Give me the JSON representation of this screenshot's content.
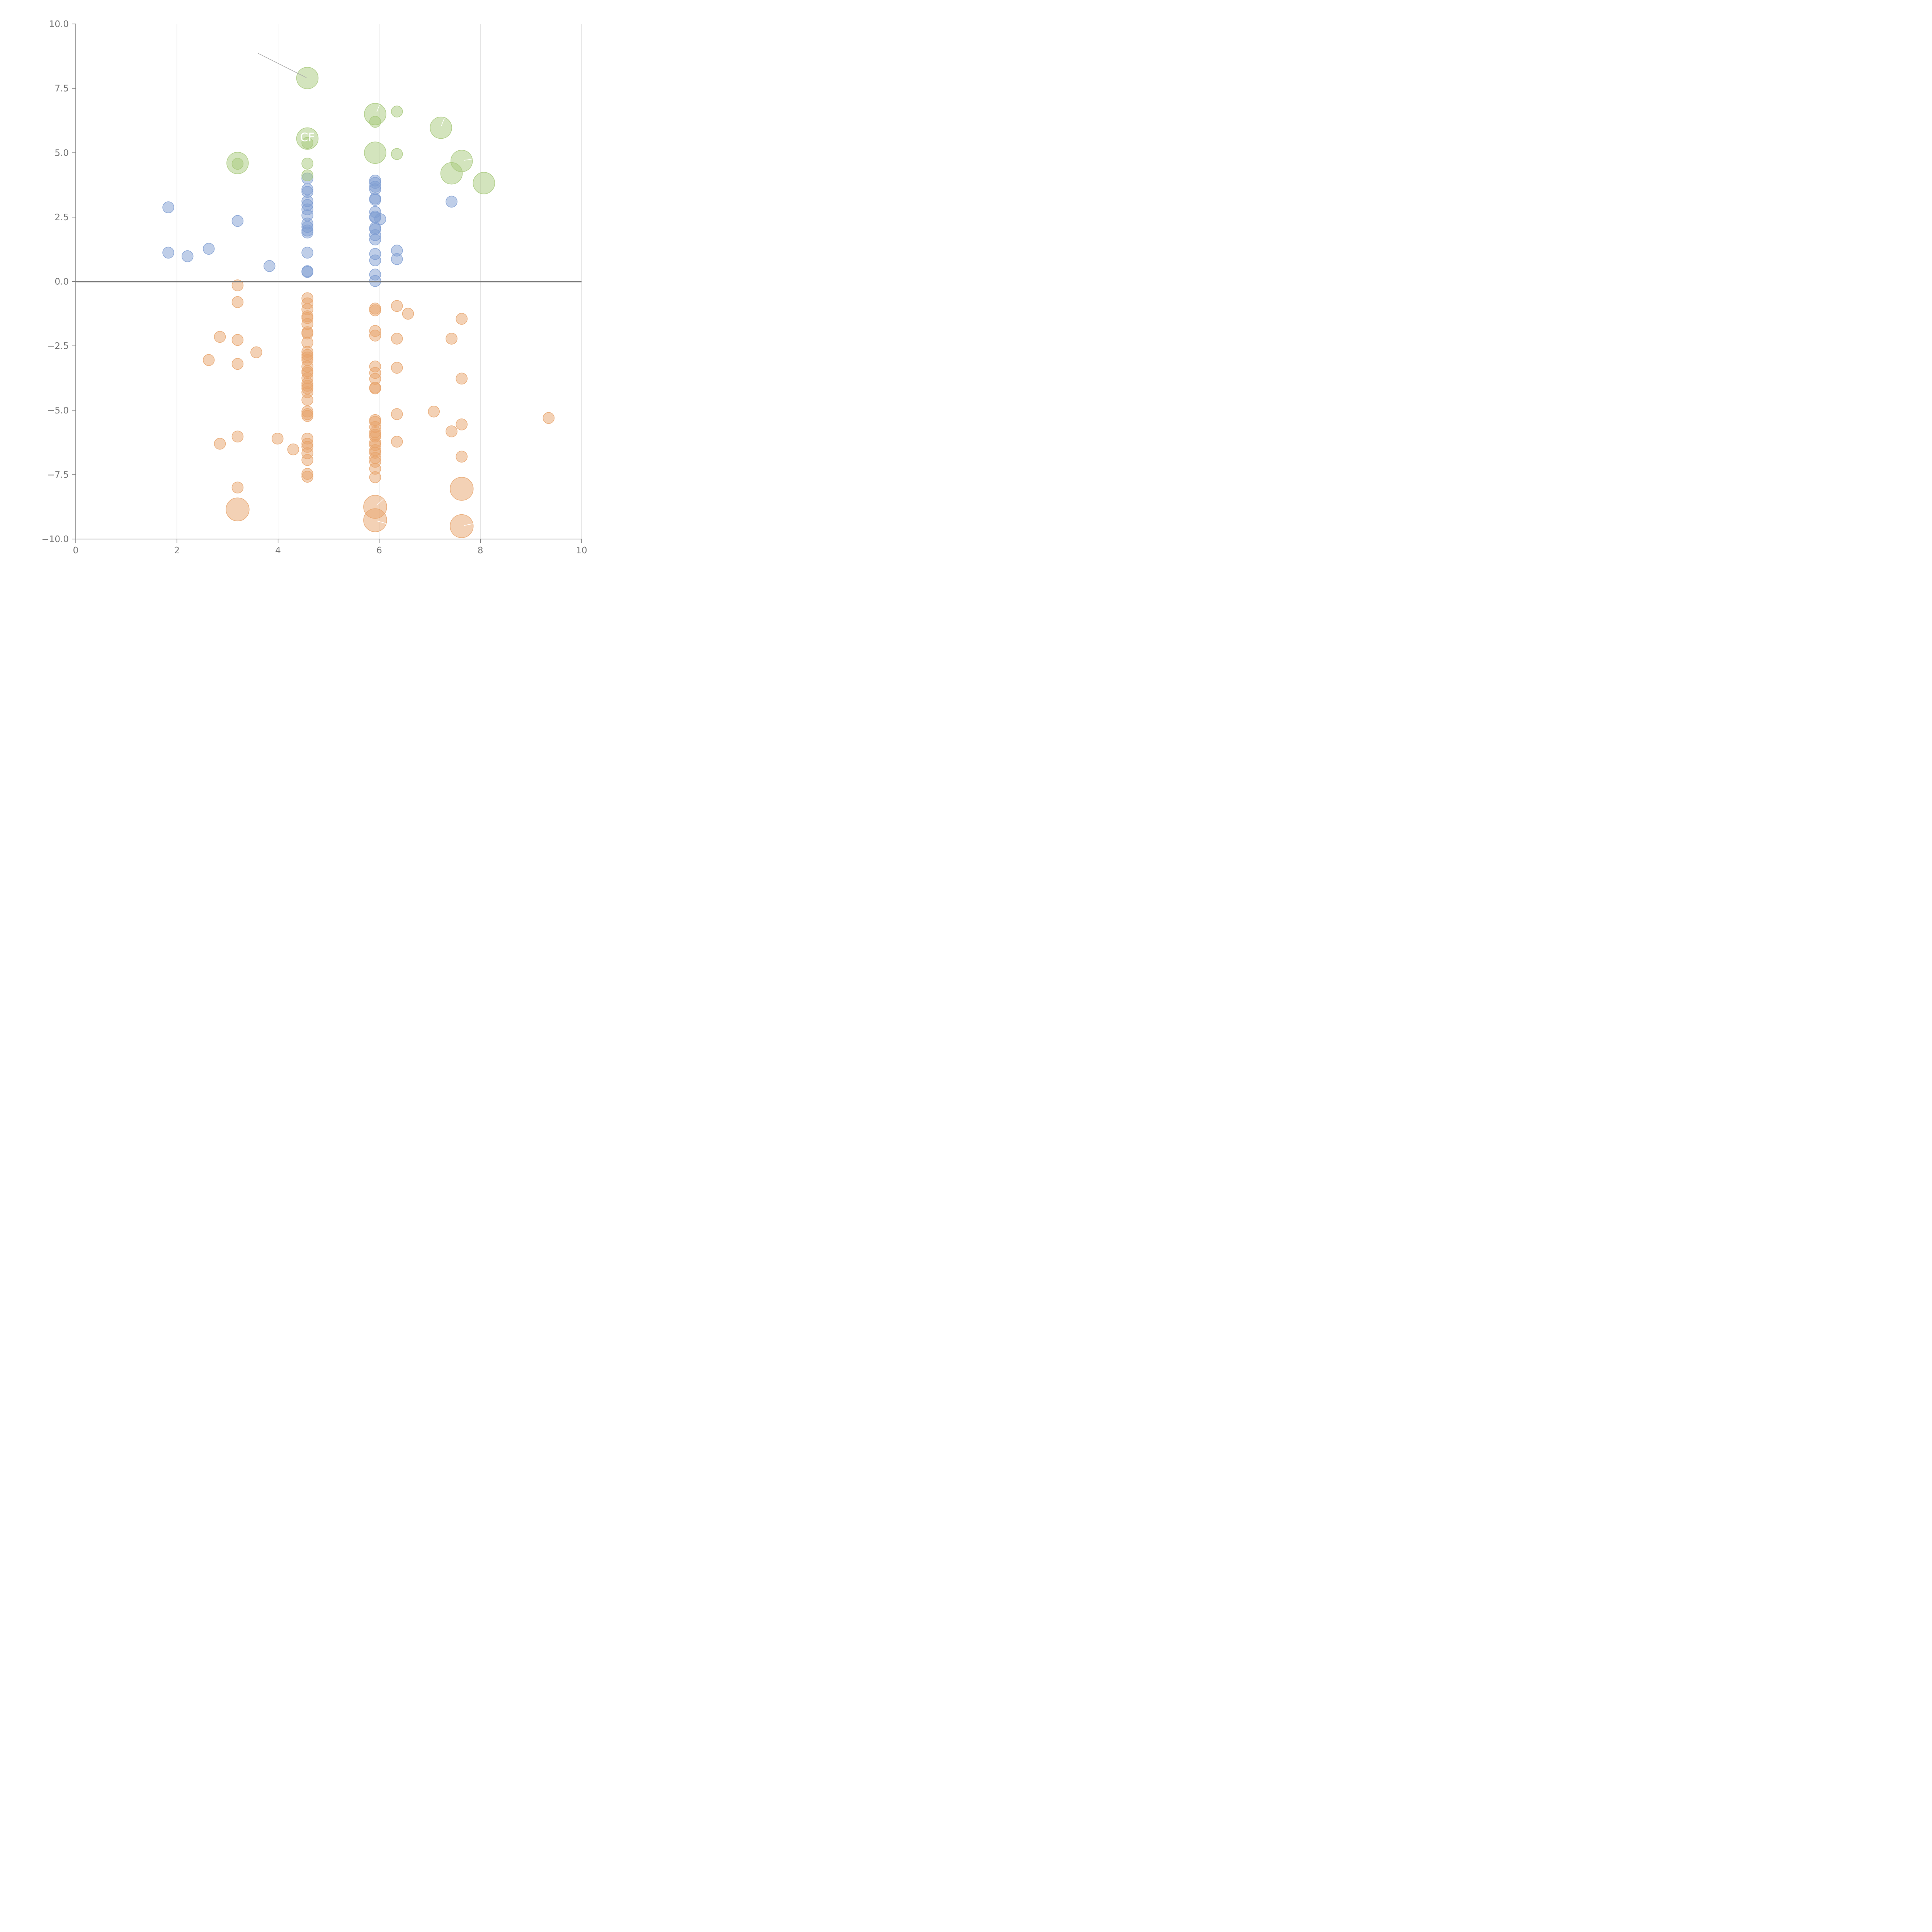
{
  "chart_data": {
    "type": "scatter",
    "title": "",
    "xlabel": "",
    "ylabel": "",
    "xlim": [
      0,
      10
    ],
    "ylim": [
      -10,
      10
    ],
    "x_ticks": [
      "0",
      "2",
      "4",
      "6",
      "8",
      "10"
    ],
    "y_ticks": [
      "10.0",
      "7.5",
      "5.0",
      "2.5",
      "0.0",
      "−2.5",
      "−5.0",
      "−7.5",
      "−10.0"
    ],
    "x_tick_values": [
      0,
      2,
      4,
      6,
      8,
      10
    ],
    "y_tick_values": [
      10,
      7.5,
      5,
      2.5,
      0,
      -2.5,
      -5,
      -7.5,
      -10
    ],
    "grid": "vertical",
    "zero_line": true,
    "colors": {
      "orange": "#e8a46c",
      "blue": "#7f9ed2",
      "green": "#a8c97c"
    },
    "series": [
      {
        "name": "orange",
        "color": "#e8a46c",
        "points": [
          [
            3.2,
            -0.15,
            1
          ],
          [
            3.2,
            -0.8,
            1
          ],
          [
            2.85,
            -2.15,
            1
          ],
          [
            3.2,
            -2.27,
            1
          ],
          [
            3.57,
            -2.75,
            1
          ],
          [
            2.63,
            -3.05,
            1
          ],
          [
            3.2,
            -3.2,
            1
          ],
          [
            2.85,
            -6.3,
            1
          ],
          [
            3.2,
            -6.02,
            1
          ],
          [
            3.99,
            -6.1,
            1
          ],
          [
            4.3,
            -6.52,
            1
          ],
          [
            3.2,
            -8.0,
            1
          ],
          [
            3.2,
            -8.85,
            3
          ],
          [
            4.58,
            -0.65,
            1
          ],
          [
            4.58,
            -0.85,
            1
          ],
          [
            4.58,
            -1.08,
            1
          ],
          [
            4.58,
            -1.35,
            1
          ],
          [
            4.58,
            -1.42,
            1
          ],
          [
            4.58,
            -1.65,
            1
          ],
          [
            4.58,
            -1.97,
            1
          ],
          [
            4.58,
            -2.02,
            1
          ],
          [
            4.58,
            -2.37,
            1
          ],
          [
            4.58,
            -2.73,
            1
          ],
          [
            4.58,
            -2.85,
            1
          ],
          [
            4.58,
            -2.95,
            1
          ],
          [
            4.58,
            -3.05,
            1
          ],
          [
            4.58,
            -3.3,
            1
          ],
          [
            4.58,
            -3.48,
            1
          ],
          [
            4.58,
            -3.55,
            1
          ],
          [
            4.58,
            -3.75,
            1
          ],
          [
            4.58,
            -3.95,
            1
          ],
          [
            4.58,
            -4.05,
            1
          ],
          [
            4.58,
            -4.15,
            1
          ],
          [
            4.58,
            -4.3,
            1
          ],
          [
            4.58,
            -4.6,
            1
          ],
          [
            4.58,
            -5.05,
            1
          ],
          [
            4.58,
            -5.15,
            1
          ],
          [
            4.58,
            -5.22,
            1
          ],
          [
            4.58,
            -6.1,
            1
          ],
          [
            4.58,
            -6.3,
            1
          ],
          [
            4.58,
            -6.42,
            1
          ],
          [
            4.58,
            -6.67,
            1
          ],
          [
            4.58,
            -6.93,
            1
          ],
          [
            4.58,
            -7.47,
            1
          ],
          [
            4.58,
            -7.58,
            1
          ],
          [
            5.92,
            -1.05,
            1
          ],
          [
            5.92,
            -1.12,
            1
          ],
          [
            5.92,
            -1.92,
            1
          ],
          [
            5.92,
            -2.1,
            1
          ],
          [
            5.92,
            -3.3,
            1
          ],
          [
            5.92,
            -3.55,
            1
          ],
          [
            5.92,
            -3.78,
            1
          ],
          [
            5.92,
            -4.12,
            1
          ],
          [
            5.92,
            -4.15,
            1
          ],
          [
            5.92,
            -5.38,
            1
          ],
          [
            5.92,
            -5.45,
            1
          ],
          [
            5.92,
            -5.65,
            1
          ],
          [
            5.92,
            -5.85,
            1
          ],
          [
            5.92,
            -5.95,
            1
          ],
          [
            5.92,
            -6.02,
            1
          ],
          [
            5.92,
            -6.25,
            1
          ],
          [
            5.92,
            -6.35,
            1
          ],
          [
            5.92,
            -6.55,
            1
          ],
          [
            5.92,
            -6.65,
            1
          ],
          [
            5.92,
            -6.85,
            1
          ],
          [
            5.92,
            -7.0,
            1
          ],
          [
            5.92,
            -7.27,
            1
          ],
          [
            5.92,
            -7.6,
            1
          ],
          [
            5.92,
            -8.75,
            3
          ],
          [
            5.92,
            -9.27,
            3
          ],
          [
            6.35,
            -0.95,
            1
          ],
          [
            6.57,
            -1.25,
            1
          ],
          [
            6.35,
            -2.22,
            1
          ],
          [
            6.35,
            -3.35,
            1
          ],
          [
            6.35,
            -5.15,
            1
          ],
          [
            6.35,
            -6.22,
            1
          ],
          [
            7.08,
            -5.05,
            1
          ],
          [
            7.43,
            -2.22,
            1
          ],
          [
            7.43,
            -5.82,
            1
          ],
          [
            7.63,
            -1.45,
            1
          ],
          [
            7.63,
            -3.77,
            1
          ],
          [
            7.63,
            -5.55,
            1
          ],
          [
            7.63,
            -6.8,
            1
          ],
          [
            7.63,
            -8.05,
            3
          ],
          [
            7.63,
            -9.5,
            3
          ],
          [
            9.35,
            -5.3,
            1
          ]
        ]
      },
      {
        "name": "blue",
        "color": "#7f9ed2",
        "points": [
          [
            1.83,
            2.88,
            1
          ],
          [
            1.83,
            1.12,
            1
          ],
          [
            2.21,
            0.98,
            1
          ],
          [
            2.63,
            1.27,
            1
          ],
          [
            3.2,
            2.35,
            1
          ],
          [
            3.83,
            0.6,
            1
          ],
          [
            4.58,
            4.0,
            1
          ],
          [
            4.58,
            3.58,
            1
          ],
          [
            4.58,
            3.48,
            1
          ],
          [
            4.58,
            3.12,
            1
          ],
          [
            4.58,
            2.97,
            1
          ],
          [
            4.58,
            2.8,
            1
          ],
          [
            4.58,
            2.57,
            1
          ],
          [
            4.58,
            2.25,
            1
          ],
          [
            4.58,
            2.12,
            1
          ],
          [
            4.58,
            1.98,
            1
          ],
          [
            4.58,
            1.9,
            1
          ],
          [
            4.58,
            1.12,
            1
          ],
          [
            4.58,
            0.4,
            1
          ],
          [
            4.58,
            0.37,
            1
          ],
          [
            5.92,
            3.92,
            1
          ],
          [
            5.92,
            3.83,
            1
          ],
          [
            5.92,
            3.68,
            1
          ],
          [
            5.92,
            3.58,
            1
          ],
          [
            5.92,
            3.22,
            1
          ],
          [
            5.92,
            3.17,
            1
          ],
          [
            5.92,
            2.7,
            1
          ],
          [
            5.92,
            2.52,
            1
          ],
          [
            5.92,
            2.48,
            1
          ],
          [
            6.02,
            2.42,
            1
          ],
          [
            5.92,
            2.08,
            1
          ],
          [
            5.92,
            2.03,
            1
          ],
          [
            5.92,
            1.8,
            1
          ],
          [
            5.92,
            1.63,
            1
          ],
          [
            5.92,
            1.07,
            1
          ],
          [
            5.92,
            0.82,
            1
          ],
          [
            5.92,
            0.27,
            1
          ],
          [
            5.92,
            0.02,
            1
          ],
          [
            6.35,
            1.2,
            1
          ],
          [
            6.35,
            0.87,
            1
          ],
          [
            7.43,
            3.1,
            1
          ]
        ]
      },
      {
        "name": "green",
        "color": "#a8c97c",
        "points": [
          [
            3.2,
            4.6,
            2
          ],
          [
            3.2,
            4.57,
            1
          ],
          [
            4.58,
            7.9,
            2
          ],
          [
            4.58,
            5.55,
            2
          ],
          [
            4.58,
            5.38,
            1
          ],
          [
            4.58,
            4.58,
            1
          ],
          [
            4.58,
            4.12,
            1
          ],
          [
            5.92,
            6.5,
            2
          ],
          [
            5.92,
            6.2,
            1
          ],
          [
            5.92,
            5.0,
            2
          ],
          [
            6.35,
            6.6,
            1
          ],
          [
            6.35,
            4.95,
            1
          ],
          [
            7.22,
            5.97,
            2
          ],
          [
            7.63,
            4.68,
            2
          ],
          [
            7.43,
            4.2,
            2
          ],
          [
            8.07,
            3.82,
            2
          ]
        ]
      }
    ],
    "annotations": [
      {
        "text": "CF",
        "x": 4.58,
        "y": 5.6
      }
    ]
  }
}
